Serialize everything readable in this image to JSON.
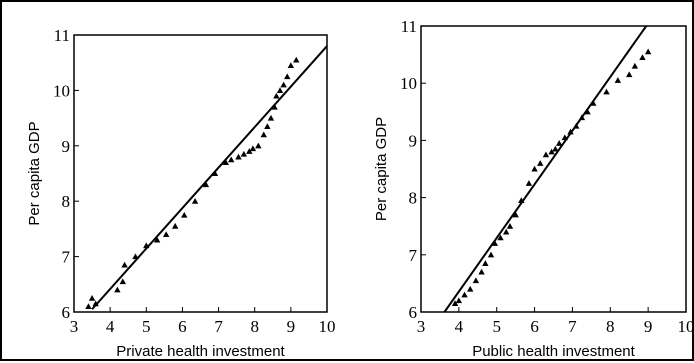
{
  "chart_data": [
    {
      "type": "scatter",
      "xlabel": "Private health investment",
      "ylabel": "Per capita GDP",
      "xlim": [
        3,
        10
      ],
      "ylim": [
        6,
        11
      ],
      "xticks": [
        "3",
        "4",
        "5",
        "6",
        "7",
        "8",
        "9",
        "10"
      ],
      "yticks": [
        "6",
        "7",
        "8",
        "9",
        "10",
        "11"
      ],
      "points": [
        [
          3.4,
          6.1
        ],
        [
          3.5,
          6.25
        ],
        [
          3.6,
          6.15
        ],
        [
          4.2,
          6.4
        ],
        [
          4.35,
          6.55
        ],
        [
          4.4,
          6.85
        ],
        [
          4.7,
          7.0
        ],
        [
          5.0,
          7.2
        ],
        [
          5.3,
          7.3
        ],
        [
          5.55,
          7.4
        ],
        [
          5.8,
          7.55
        ],
        [
          6.05,
          7.75
        ],
        [
          6.35,
          8.0
        ],
        [
          6.65,
          8.3
        ],
        [
          6.9,
          8.5
        ],
        [
          7.2,
          8.7
        ],
        [
          7.35,
          8.75
        ],
        [
          7.55,
          8.8
        ],
        [
          7.7,
          8.85
        ],
        [
          7.85,
          8.9
        ],
        [
          7.95,
          8.95
        ],
        [
          8.1,
          9.0
        ],
        [
          8.25,
          9.2
        ],
        [
          8.35,
          9.35
        ],
        [
          8.45,
          9.5
        ],
        [
          8.55,
          9.7
        ],
        [
          8.6,
          9.9
        ],
        [
          8.7,
          10.0
        ],
        [
          8.8,
          10.1
        ],
        [
          8.9,
          10.25
        ],
        [
          9.0,
          10.45
        ],
        [
          9.15,
          10.55
        ]
      ],
      "line": [
        [
          3.5,
          6.05
        ],
        [
          10,
          10.8
        ]
      ],
      "grid": false
    },
    {
      "type": "scatter",
      "xlabel": "Public health investment",
      "ylabel": "Per capita GDP",
      "xlim": [
        3,
        10
      ],
      "ylim": [
        6,
        11
      ],
      "xticks": [
        "3",
        "4",
        "5",
        "6",
        "7",
        "8",
        "9",
        "10"
      ],
      "yticks": [
        "6",
        "7",
        "8",
        "9",
        "10",
        "11"
      ],
      "points": [
        [
          3.9,
          6.15
        ],
        [
          4.0,
          6.2
        ],
        [
          4.15,
          6.3
        ],
        [
          4.3,
          6.4
        ],
        [
          4.45,
          6.55
        ],
        [
          4.6,
          6.7
        ],
        [
          4.7,
          6.85
        ],
        [
          4.85,
          7.0
        ],
        [
          4.95,
          7.2
        ],
        [
          5.1,
          7.3
        ],
        [
          5.25,
          7.4
        ],
        [
          5.35,
          7.5
        ],
        [
          5.5,
          7.7
        ],
        [
          5.65,
          7.95
        ],
        [
          5.85,
          8.25
        ],
        [
          6.0,
          8.5
        ],
        [
          6.15,
          8.6
        ],
        [
          6.3,
          8.75
        ],
        [
          6.45,
          8.8
        ],
        [
          6.55,
          8.85
        ],
        [
          6.65,
          8.95
        ],
        [
          6.8,
          9.05
        ],
        [
          6.95,
          9.15
        ],
        [
          7.1,
          9.25
        ],
        [
          7.25,
          9.4
        ],
        [
          7.4,
          9.5
        ],
        [
          7.55,
          9.65
        ],
        [
          7.9,
          9.85
        ],
        [
          8.2,
          10.05
        ],
        [
          8.5,
          10.15
        ],
        [
          8.65,
          10.3
        ],
        [
          8.85,
          10.45
        ],
        [
          9.0,
          10.55
        ]
      ],
      "line": [
        [
          3.62,
          6.0
        ],
        [
          8.95,
          11.0
        ]
      ],
      "grid": false
    }
  ]
}
